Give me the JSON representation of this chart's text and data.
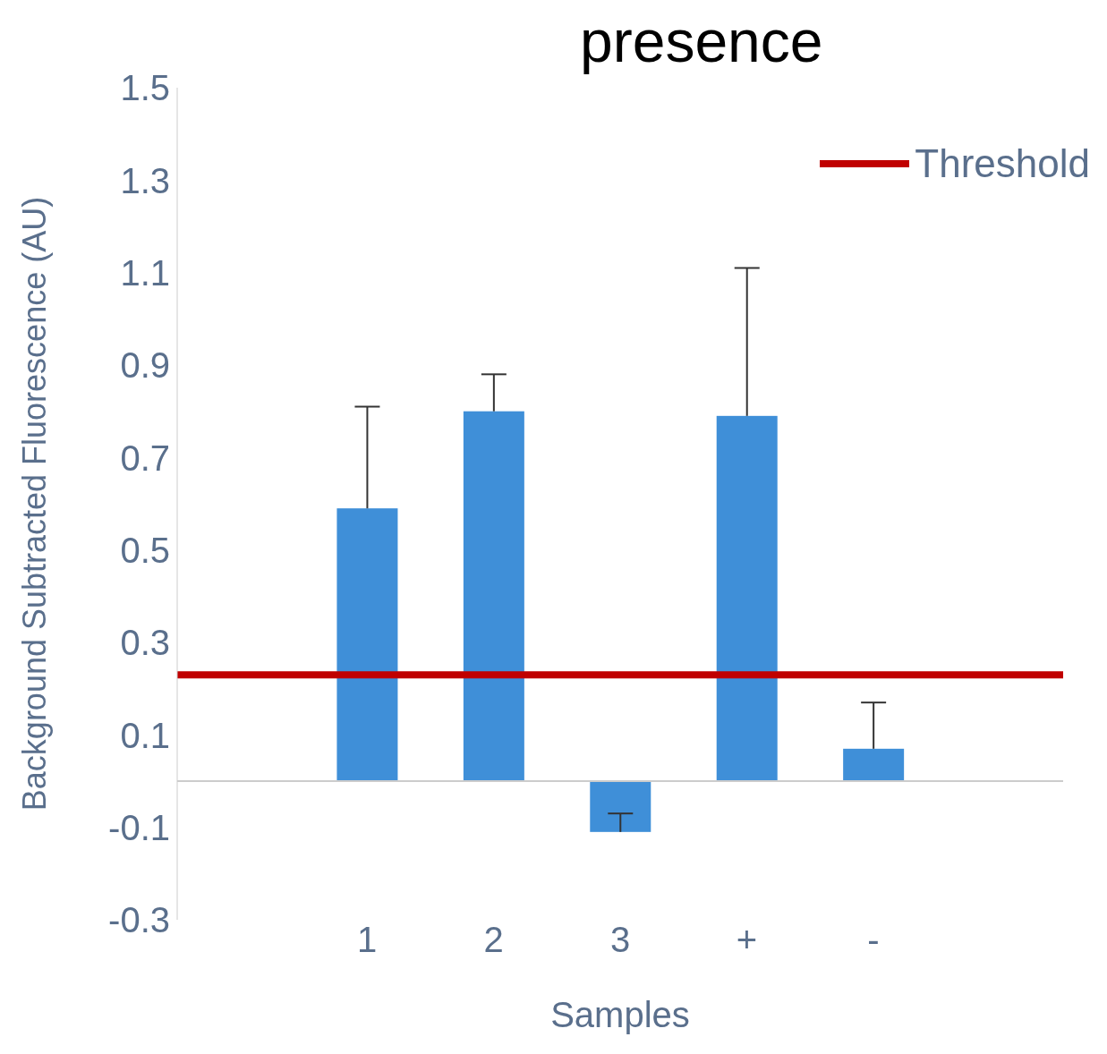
{
  "chart_data": {
    "type": "bar",
    "title": "presence",
    "xlabel": "Samples",
    "ylabel": "Background Subtracted Fluorescence (AU)",
    "categories": [
      null,
      "1",
      "2",
      "3",
      "+",
      "-",
      null
    ],
    "values": [
      null,
      0.59,
      0.8,
      -0.11,
      0.79,
      0.07,
      null
    ],
    "errors": [
      null,
      [
        0.59,
        0.81
      ],
      [
        0.8,
        0.88
      ],
      [
        -0.11,
        -0.07
      ],
      [
        0.79,
        1.11
      ],
      [
        0.07,
        0.17
      ],
      null
    ],
    "color": "#3f8fd8",
    "ylim": [
      -0.3,
      1.5
    ],
    "yticks": [
      -0.3,
      -0.1,
      0.1,
      0.3,
      0.5,
      0.7,
      0.9,
      1.1,
      1.3,
      1.5
    ],
    "ref_lines": [
      {
        "axis": "y",
        "value": 0.23,
        "label": "Threshold",
        "color": "#c00000"
      }
    ],
    "legend": "top right",
    "grid": false
  }
}
